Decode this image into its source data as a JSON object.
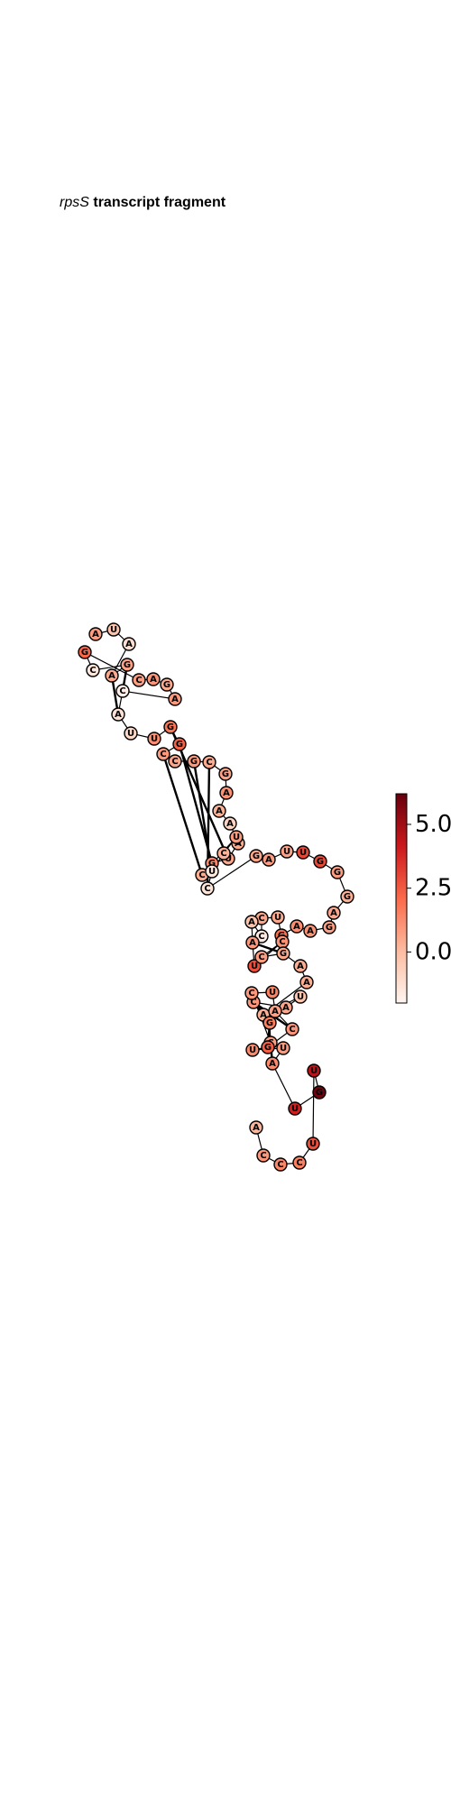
{
  "title": {
    "gene": "rpsS",
    "rest": "transcript fragment"
  },
  "colorbar": {
    "colormap": "Reds",
    "min": -2.0,
    "max": 6.2,
    "ticks": [
      {
        "value": 5.0,
        "label": "5.0"
      },
      {
        "value": 2.5,
        "label": "2.5"
      },
      {
        "value": 0.0,
        "label": "0.0"
      }
    ],
    "colors": [
      "#fff5f0",
      "#fcbba1",
      "#fb6a4a",
      "#cb181d",
      "#67000d"
    ]
  },
  "nucleotides": [
    {
      "base": "A",
      "value": 0.8
    },
    {
      "base": "U",
      "value": -0.2
    },
    {
      "base": "A",
      "value": -1.2
    },
    {
      "base": "A",
      "value": 0.5
    },
    {
      "base": "G",
      "value": 0.7
    },
    {
      "base": "C",
      "value": -1.5
    },
    {
      "base": "G",
      "value": 2.2
    },
    {
      "base": "C",
      "value": 0.8
    },
    {
      "base": "A",
      "value": 1.0
    },
    {
      "base": "G",
      "value": 0.5
    },
    {
      "base": "A",
      "value": 0.9
    },
    {
      "base": "C",
      "value": -1.8
    },
    {
      "base": "A",
      "value": -1.3
    },
    {
      "base": "U",
      "value": -1.0
    },
    {
      "base": "U",
      "value": 1.2
    },
    {
      "base": "G",
      "value": 1.8
    },
    {
      "base": "G",
      "value": 2.3
    },
    {
      "base": "C",
      "value": 0.9
    },
    {
      "base": "C",
      "value": 0.6
    },
    {
      "base": "G",
      "value": 0.9
    },
    {
      "base": "C",
      "value": 0.5
    },
    {
      "base": "G",
      "value": 0.7
    },
    {
      "base": "A",
      "value": 1.1
    },
    {
      "base": "A",
      "value": 0.3
    },
    {
      "base": "A",
      "value": -0.8
    },
    {
      "base": "A",
      "value": 0.5
    },
    {
      "base": "U",
      "value": 0.6
    },
    {
      "base": "G",
      "value": 1.4
    },
    {
      "base": "C",
      "value": 0.4
    },
    {
      "base": "U",
      "value": 0.9
    },
    {
      "base": "C",
      "value": 0.3
    },
    {
      "base": "U",
      "value": -1.5
    },
    {
      "base": "C",
      "value": -1.4
    },
    {
      "base": "G",
      "value": 0.6
    },
    {
      "base": "A",
      "value": 0.8
    },
    {
      "base": "U",
      "value": 0.7
    },
    {
      "base": "U",
      "value": 3.0
    },
    {
      "base": "G",
      "value": 2.9
    },
    {
      "base": "G",
      "value": 0.8
    },
    {
      "base": "G",
      "value": 0.3
    },
    {
      "base": "A",
      "value": 0.6
    },
    {
      "base": "G",
      "value": 0.7
    },
    {
      "base": "A",
      "value": 1.1
    },
    {
      "base": "A",
      "value": 1.2
    },
    {
      "base": "G",
      "value": 2.0
    },
    {
      "base": "U",
      "value": 0.5
    },
    {
      "base": "C",
      "value": 0.6
    },
    {
      "base": "C",
      "value": -1.6
    },
    {
      "base": "A",
      "value": -0.2
    },
    {
      "base": "A",
      "value": 0.9
    },
    {
      "base": "U",
      "value": 2.8
    },
    {
      "base": "C",
      "value": 1.1
    },
    {
      "base": "C",
      "value": 0.8
    },
    {
      "base": "G",
      "value": 0.5
    },
    {
      "base": "A",
      "value": 0.4
    },
    {
      "base": "A",
      "value": 0.4
    },
    {
      "base": "A",
      "value": 0.3
    },
    {
      "base": "U",
      "value": -0.3
    },
    {
      "base": "A",
      "value": 0.6
    },
    {
      "base": "C",
      "value": 1.0
    },
    {
      "base": "G",
      "value": 1.6
    },
    {
      "base": "C",
      "value": 0.8
    },
    {
      "base": "C",
      "value": 0.9
    },
    {
      "base": "U",
      "value": 1.5
    },
    {
      "base": "A",
      "value": 0.7
    },
    {
      "base": "C",
      "value": 1.0
    },
    {
      "base": "G",
      "value": 2.4
    },
    {
      "base": "U",
      "value": 1.3
    },
    {
      "base": "U",
      "value": 0.9
    },
    {
      "base": "A",
      "value": 1.3
    },
    {
      "base": "U",
      "value": 4.0
    },
    {
      "base": "G",
      "value": 6.0
    },
    {
      "base": "U",
      "value": 4.5
    },
    {
      "base": "U",
      "value": 2.8
    },
    {
      "base": "C",
      "value": 1.6
    },
    {
      "base": "C",
      "value": 1.4
    },
    {
      "base": "C",
      "value": 1.0
    },
    {
      "base": "A",
      "value": 0.2
    }
  ]
}
